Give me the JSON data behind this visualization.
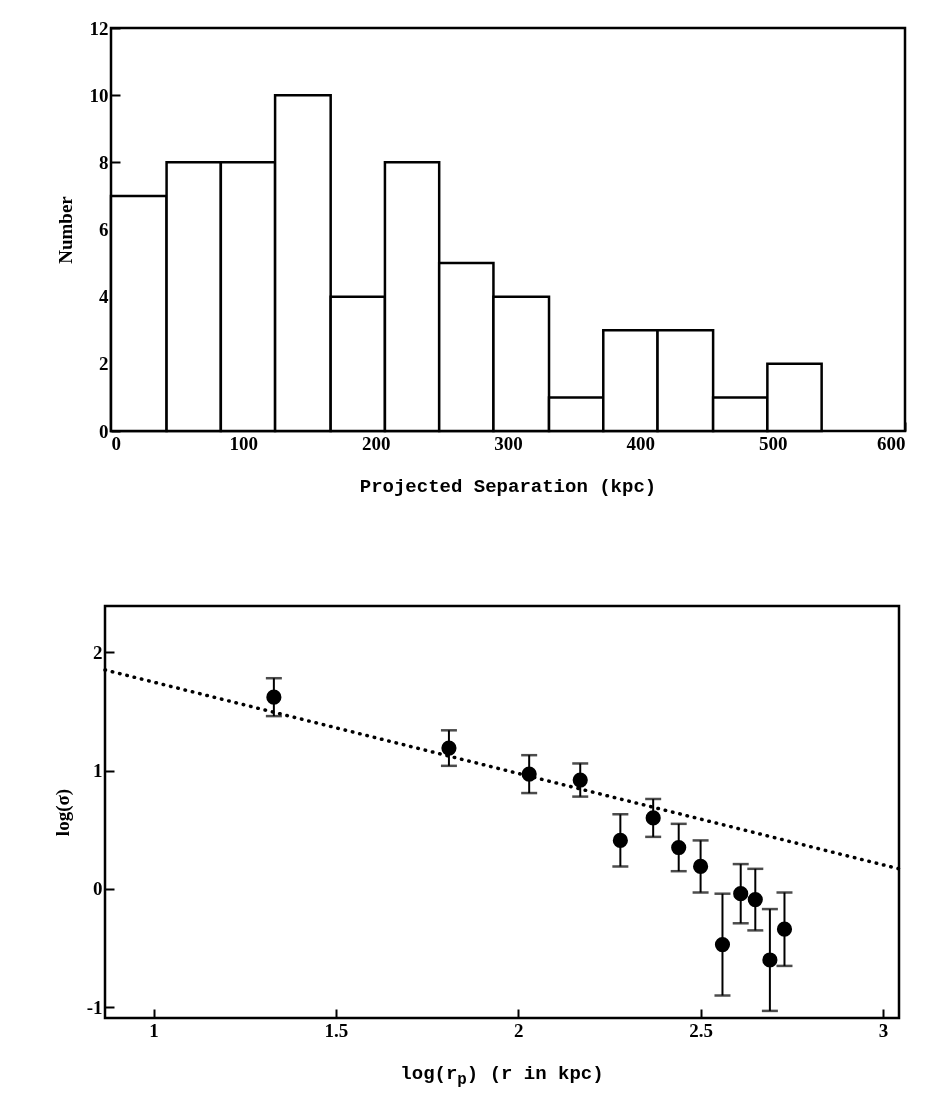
{
  "chart_data": [
    {
      "type": "histogram",
      "xlabel": "Projected Separation (kpc)",
      "ylabel": "Number",
      "bins": [
        0,
        42,
        83,
        124,
        166,
        207,
        248,
        289,
        331,
        372,
        413,
        455,
        496,
        537
      ],
      "values": [
        7,
        8,
        8,
        10,
        4,
        8,
        5,
        4,
        1,
        3,
        3,
        1,
        2
      ],
      "color": "#ffffff",
      "xlim": [
        0,
        600
      ],
      "xticks": [
        0,
        100,
        200,
        300,
        400,
        500,
        600
      ],
      "ylim": [
        0,
        12
      ],
      "yticks": [
        0,
        2,
        4,
        6,
        8,
        10,
        12
      ]
    },
    {
      "type": "scatter",
      "xlabel": "log(r$_{p}$) (r in kpc)",
      "ylabel": "log(σ)",
      "x": [
        1.33,
        1.81,
        2.03,
        2.17,
        2.28,
        2.37,
        2.44,
        2.5,
        2.56,
        2.61,
        2.65,
        2.69,
        2.73
      ],
      "xlim": [
        0.867,
        3.044
      ],
      "xticks": [
        1,
        1.5,
        2,
        2.5,
        3
      ],
      "ylim": [
        -1.09,
        2.39
      ],
      "yticks": [
        -1,
        0,
        1,
        2
      ],
      "series": [
        {
          "color": "#000000",
          "marker": "circle",
          "values": [
            1.62,
            1.19,
            0.97,
            0.92,
            0.41,
            0.6,
            0.35,
            0.19,
            -0.47,
            -0.04,
            -0.09,
            -0.6,
            -0.34
          ],
          "errors": [
            0.16,
            0.15,
            0.16,
            0.14,
            0.22,
            0.16,
            0.2,
            0.22,
            0.43,
            0.25,
            0.26,
            0.43,
            0.31
          ]
        },
        {
          "type": "line",
          "color": "#000000",
          "line_style": "dotted",
          "x": [
            0.867,
            3.044
          ],
          "values": [
            1.85,
            0.17
          ]
        }
      ]
    }
  ]
}
